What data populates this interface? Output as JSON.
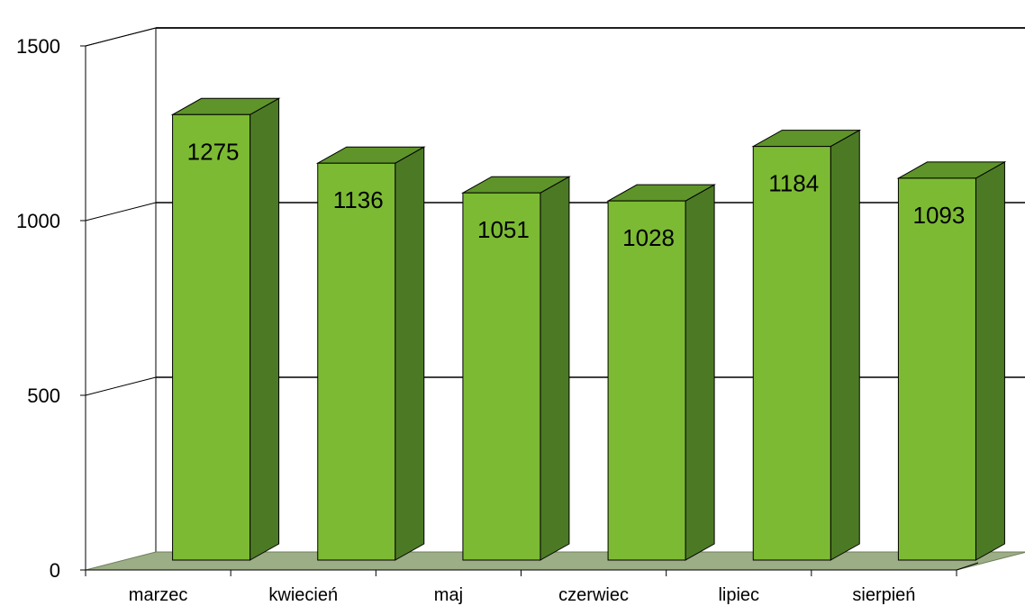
{
  "chart_data": {
    "type": "bar",
    "title": "",
    "xlabel": "",
    "ylabel": "",
    "categories": [
      "marzec",
      "kwiecień",
      "maj",
      "czerwiec",
      "lipiec",
      "sierpień"
    ],
    "values": [
      1275,
      1136,
      1051,
      1028,
      1184,
      1093
    ],
    "ylim": [
      0,
      1500
    ],
    "yticks": [
      "0",
      "500",
      "1000",
      "1500"
    ],
    "grid": true,
    "legend": "none",
    "three_d": true,
    "colors": {
      "bar_front": "#7cba34",
      "bar_side": "#4c7a24",
      "bar_top": "#5e9429",
      "floor": "#9cae85",
      "edge": "#000000"
    }
  }
}
